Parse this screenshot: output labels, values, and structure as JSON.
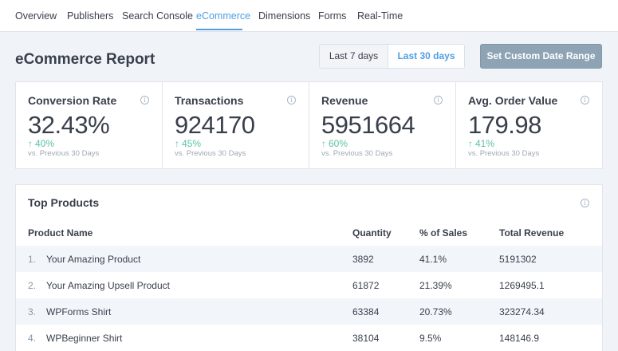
{
  "nav": {
    "items": [
      "Overview",
      "Publishers",
      "Search Console",
      "eCommerce",
      "Dimensions",
      "Forms",
      "Real-Time"
    ],
    "active": "eCommerce"
  },
  "header": {
    "title": "eCommerce Report",
    "range_options": [
      "Last 7 days",
      "Last 30 days"
    ],
    "selected_range": "Last 30 days",
    "custom_range_label": "Set Custom Date Range"
  },
  "metrics": [
    {
      "label": "Conversion Rate",
      "value": "32.43%",
      "change": "40%",
      "direction": "up",
      "compare": "vs. Previous 30 Days",
      "icon": "info-icon"
    },
    {
      "label": "Transactions",
      "value": "924170",
      "change": "45%",
      "direction": "up",
      "compare": "vs. Previous 30 Days",
      "icon": "info-icon"
    },
    {
      "label": "Revenue",
      "value": "5951664",
      "change": "60%",
      "direction": "up",
      "compare": "vs. Previous 30 Days",
      "icon": "info-icon"
    },
    {
      "label": "Avg. Order Value",
      "value": "179.98",
      "change": "41%",
      "direction": "up",
      "compare": "vs. Previous 30 Days",
      "icon": "info-icon"
    }
  ],
  "top_products": {
    "title": "Top Products",
    "columns": [
      "Product Name",
      "Quantity",
      "% of Sales",
      "Total Revenue"
    ],
    "rows": [
      {
        "index": "1.",
        "name": "Your Amazing Product",
        "quantity": "3892",
        "pct": "41.1%",
        "revenue": "5191302"
      },
      {
        "index": "2.",
        "name": "Your Amazing Upsell Product",
        "quantity": "61872",
        "pct": "21.39%",
        "revenue": "1269495.1"
      },
      {
        "index": "3.",
        "name": "WPForms Shirt",
        "quantity": "63384",
        "pct": "20.73%",
        "revenue": "323274.34"
      },
      {
        "index": "4.",
        "name": "WPBeginner Shirt",
        "quantity": "38104",
        "pct": "9.5%",
        "revenue": "148146.9"
      }
    ]
  },
  "colors": {
    "accent": "#509fe2",
    "positive": "#5cc0a7",
    "background": "#f0f4f8",
    "custom_range_button": "#8ea4b4"
  }
}
